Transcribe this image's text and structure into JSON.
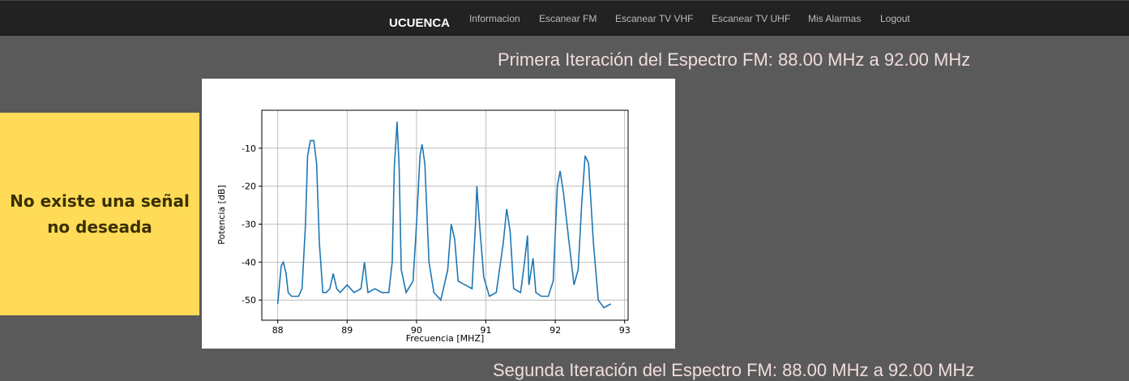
{
  "nav": {
    "brand": "UCUENCA",
    "links": [
      "Informacion",
      "Escanear FM",
      "Escanear TV VHF",
      "Escanear TV UHF",
      "Mis Alarmas",
      "Logout"
    ]
  },
  "heading": "Primera Iteración del Espectro FM: 88.00 MHz a 92.00 MHz",
  "alert": {
    "line1": "No existe una señal",
    "line2": "no deseada"
  },
  "next_heading": "Segunda Iteración del Espectro FM: 88.00 MHz a 92.00 MHz",
  "chart_data": {
    "type": "line",
    "xlabel": "Frecuencia [MHZ]",
    "ylabel": "Potencia [dB]",
    "color": "#1f77b4",
    "grid": true,
    "xlim": [
      87.77,
      93.05
    ],
    "ylim": [
      -55.3,
      0
    ],
    "xticks": [
      88,
      89,
      90,
      91,
      92,
      93
    ],
    "yticks": [
      -50,
      -40,
      -30,
      -20,
      -10
    ],
    "x": [
      88.0,
      88.03,
      88.05,
      88.08,
      88.12,
      88.15,
      88.2,
      88.3,
      88.35,
      88.4,
      88.43,
      88.47,
      88.52,
      88.56,
      88.6,
      88.65,
      88.7,
      88.75,
      88.8,
      88.85,
      88.9,
      89.0,
      89.1,
      89.2,
      89.25,
      89.3,
      89.4,
      89.5,
      89.6,
      89.65,
      89.68,
      89.72,
      89.75,
      89.78,
      89.85,
      89.95,
      90.0,
      90.05,
      90.08,
      90.12,
      90.18,
      90.25,
      90.35,
      90.45,
      90.5,
      90.55,
      90.6,
      90.7,
      90.8,
      90.85,
      90.87,
      90.9,
      90.93,
      90.97,
      91.05,
      91.15,
      91.25,
      91.3,
      91.35,
      91.4,
      91.5,
      91.55,
      91.6,
      91.62,
      91.68,
      91.72,
      91.8,
      91.9,
      91.97,
      92.03,
      92.07,
      92.12,
      92.2,
      92.27,
      92.33,
      92.38,
      92.43,
      92.48,
      92.55,
      92.62,
      92.7,
      92.8
    ],
    "values": [
      -51,
      -45,
      -41,
      -40,
      -43,
      -48,
      -49,
      -49,
      -47,
      -30,
      -12,
      -8,
      -8,
      -14,
      -35,
      -48,
      -48,
      -47,
      -43,
      -47,
      -48,
      -46,
      -48,
      -47,
      -40,
      -48,
      -47,
      -48,
      -48,
      -40,
      -15,
      -3,
      -15,
      -42,
      -48,
      -45,
      -30,
      -12,
      -9,
      -14,
      -40,
      -48,
      -50,
      -42,
      -30,
      -34,
      -45,
      -46,
      -47,
      -30,
      -20,
      -28,
      -35,
      -44,
      -49,
      -48,
      -35,
      -26,
      -32,
      -47,
      -48,
      -41,
      -33,
      -46,
      -39,
      -48,
      -49,
      -49,
      -45,
      -20,
      -16,
      -22,
      -35,
      -46,
      -42,
      -25,
      -12,
      -14,
      -35,
      -50,
      -52,
      -51
    ]
  }
}
